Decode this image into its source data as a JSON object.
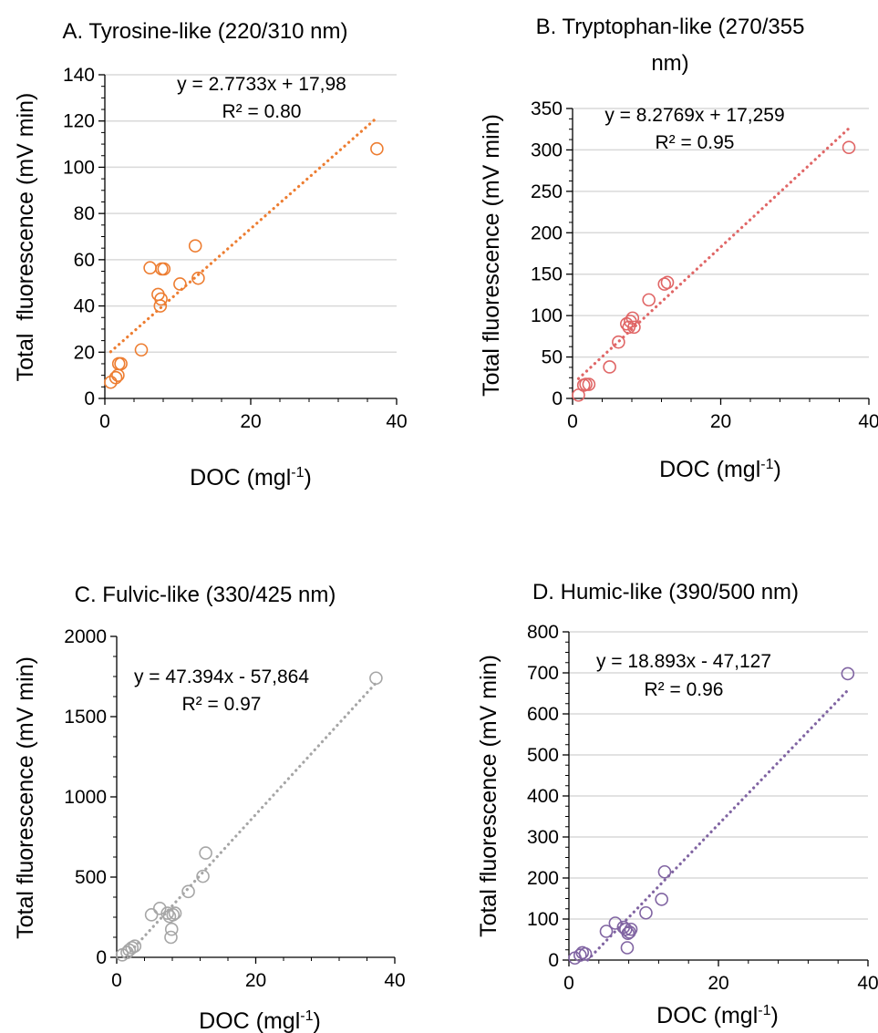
{
  "chart_data": [
    {
      "type": "scatter",
      "title_lines": [
        "A. Tyrosine-like (220/310 nm)"
      ],
      "xlabel": {
        "base": "DOC (mgl",
        "sup": "-1",
        "close": ")"
      },
      "ylabel": "Total  fluorescence (mV min)",
      "xlim": [
        0,
        40
      ],
      "ylim": [
        0,
        140
      ],
      "xticks": [
        0,
        20,
        40
      ],
      "yticks": [
        0,
        20,
        40,
        60,
        80,
        100,
        120,
        140
      ],
      "grid": true,
      "color": "#ED7D31",
      "points": [
        [
          0.8,
          7
        ],
        [
          1.5,
          9
        ],
        [
          1.8,
          10
        ],
        [
          1.9,
          15
        ],
        [
          2.2,
          15
        ],
        [
          5,
          21
        ],
        [
          6.2,
          56.5
        ],
        [
          7.3,
          45
        ],
        [
          7.6,
          40
        ],
        [
          7.7,
          43
        ],
        [
          7.8,
          56
        ],
        [
          8.1,
          56
        ],
        [
          10.3,
          49.5
        ],
        [
          12.4,
          66
        ],
        [
          12.8,
          52
        ],
        [
          37.3,
          108
        ]
      ],
      "trendline": {
        "slope": 2.7733,
        "intercept": 17.98,
        "x_range": [
          0.8,
          37.3
        ]
      },
      "equation": "y = 2.7733x + 17,98",
      "r2": "R² = 0.80"
    },
    {
      "type": "scatter",
      "title_lines": [
        "B. Tryptophan-like (270/355",
        "nm)"
      ],
      "xlabel": {
        "base": "DOC (mgl",
        "sup": "-1",
        "close": ")"
      },
      "ylabel": "Total fluorescence (mV min)",
      "xlim": [
        0,
        40
      ],
      "ylim": [
        0,
        350
      ],
      "xticks": [
        0,
        20,
        40
      ],
      "yticks": [
        0,
        50,
        100,
        150,
        200,
        250,
        300,
        350
      ],
      "grid": true,
      "color": "#E06666",
      "points": [
        [
          0.8,
          4
        ],
        [
          1.5,
          16
        ],
        [
          1.8,
          17
        ],
        [
          2.2,
          17
        ],
        [
          5,
          38
        ],
        [
          6.2,
          68
        ],
        [
          7.3,
          90
        ],
        [
          7.6,
          86
        ],
        [
          7.8,
          93
        ],
        [
          8.1,
          97
        ],
        [
          8.3,
          86
        ],
        [
          10.3,
          119
        ],
        [
          12.4,
          138
        ],
        [
          12.8,
          140
        ],
        [
          37.3,
          303
        ]
      ],
      "trendline": {
        "slope": 8.2769,
        "intercept": 17.259,
        "x_range": [
          0.8,
          37.3
        ]
      },
      "equation": "y = 8.2769x + 17,259",
      "r2": "R² = 0.95"
    },
    {
      "type": "scatter",
      "title_lines": [
        "C. Fulvic-like (330/425 nm)"
      ],
      "xlabel": {
        "base": "DOC (mgl",
        "sup": "-1",
        "close": ")"
      },
      "ylabel": "Total fluorescence (mV min)",
      "xlim": [
        0,
        40
      ],
      "ylim": [
        0,
        2000
      ],
      "xticks": [
        0,
        20,
        40
      ],
      "yticks": [
        0,
        500,
        1000,
        1500,
        2000
      ],
      "grid": false,
      "color": "#A6A6A6",
      "points": [
        [
          0.8,
          15
        ],
        [
          1.5,
          30
        ],
        [
          1.8,
          45
        ],
        [
          2.2,
          60
        ],
        [
          2.6,
          70
        ],
        [
          5,
          265
        ],
        [
          6.2,
          305
        ],
        [
          7.3,
          275
        ],
        [
          7.6,
          255
        ],
        [
          7.8,
          125
        ],
        [
          7.9,
          175
        ],
        [
          8.1,
          265
        ],
        [
          8.4,
          275
        ],
        [
          10.3,
          410
        ],
        [
          12.4,
          505
        ],
        [
          12.8,
          650
        ],
        [
          37.3,
          1740
        ]
      ],
      "trendline": {
        "slope": 47.394,
        "intercept": -57.864,
        "x_range": [
          1.5,
          37.3
        ]
      },
      "equation": "y = 47.394x - 57,864",
      "r2": "R² = 0.97"
    },
    {
      "type": "scatter",
      "title_lines": [
        "D. Humic-like (390/500 nm)"
      ],
      "xlabel": {
        "base": "DOC (mgl",
        "sup": "-1",
        "close": ")"
      },
      "ylabel": "Total fluorescence (mV min)",
      "xlim": [
        0,
        40
      ],
      "ylim": [
        0,
        800
      ],
      "xticks": [
        0,
        20,
        40
      ],
      "yticks": [
        0,
        100,
        200,
        300,
        400,
        500,
        600,
        700,
        800
      ],
      "grid": true,
      "color": "#8064A2",
      "points": [
        [
          0.8,
          5
        ],
        [
          1.5,
          12
        ],
        [
          1.8,
          18
        ],
        [
          2.2,
          15
        ],
        [
          5,
          70
        ],
        [
          6.2,
          90
        ],
        [
          7.3,
          80
        ],
        [
          7.6,
          75
        ],
        [
          7.8,
          30
        ],
        [
          7.9,
          65
        ],
        [
          8.1,
          68
        ],
        [
          8.3,
          75
        ],
        [
          10.3,
          115
        ],
        [
          12.4,
          148
        ],
        [
          12.8,
          215
        ],
        [
          37.3,
          698
        ]
      ],
      "trendline": {
        "slope": 18.893,
        "intercept": -47.127,
        "x_range": [
          2.5,
          37.3
        ]
      },
      "equation": "y = 18.893x - 47,127",
      "r2": "R² = 0.96"
    }
  ]
}
